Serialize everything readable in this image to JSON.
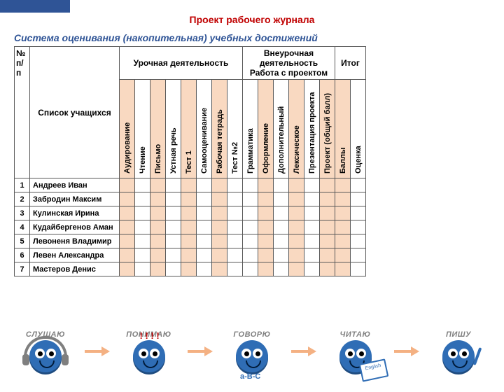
{
  "accent_bar_color": "#2f5496",
  "titles": {
    "main": "Проект рабочего журнала",
    "sub": "Система оценивания (накопительная) учебных достижений"
  },
  "table": {
    "header": {
      "num": "№ п/п",
      "name": "Список учащихся",
      "group1": "Урочная деятельность",
      "group2_line1": "Внеурочная деятельность",
      "group2_line2": "Работа с проектом",
      "group3": "Итог"
    },
    "columns": [
      "Аудирование",
      "Чтение",
      "Письмо",
      "Устная речь",
      "Тест 1",
      "Самооценивание",
      "Рабочая тетрадь",
      "Тест №2",
      "Грамматика",
      "Оформление",
      "Дополнительный",
      "Лексическое",
      "Презентация проекта",
      "Проект (общий балл)",
      "Баллы",
      "Оценка"
    ],
    "alt_colors": [
      "#ffffff",
      "#f9d9c1"
    ],
    "border_color": "#595959",
    "rows": [
      {
        "n": "1",
        "name": "Андреев Иван"
      },
      {
        "n": "2",
        "name": "Забродин Максим"
      },
      {
        "n": "3",
        "name": "Кулинская Ирина"
      },
      {
        "n": "4",
        "name": "Кудайбергенов Аман"
      },
      {
        "n": "5",
        "name": "Левоненя Владимир"
      },
      {
        "n": "6",
        "name": "Левен Александра"
      },
      {
        "n": "7",
        "name": "Мастеров Денис"
      }
    ]
  },
  "steps": {
    "labels": [
      "СЛУШАЮ",
      "ПОНИМАЮ",
      "ГОВОРЮ",
      "ЧИТАЮ",
      "ПИШУ"
    ],
    "face_color": "#2f6db5",
    "arrow_color": "#f4b183",
    "label_color": "#7f7f7f",
    "accessories": {
      "exclaim": "! ! ! !",
      "abc": "a-B-C",
      "book": "English"
    }
  }
}
